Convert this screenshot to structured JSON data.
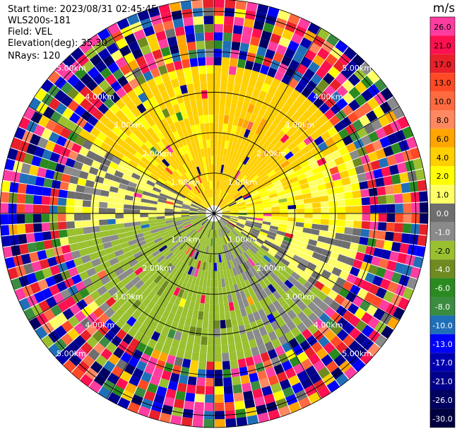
{
  "header": {
    "start_time": "Start time: 2023/08/31 02:45:45",
    "instrument": "WLS200s-181",
    "field": "Field: VEL",
    "elevation": "Elevation(deg): 35.30",
    "nrays": "NRays: 120"
  },
  "colorbar": {
    "unit": "m/s",
    "levels": [
      26.0,
      21.0,
      17.0,
      13.0,
      10.0,
      8.0,
      6.0,
      4.0,
      2.0,
      1.0,
      0.0,
      -1.0,
      -2.0,
      -4.0,
      -6.0,
      -8.0,
      -10.0,
      -13.0,
      -17.0,
      -21.0,
      -26.0,
      -30.0
    ],
    "labels": [
      "26.0",
      "21.0",
      "17.0",
      "13.0",
      "10.0",
      "8.0",
      "6.0",
      "4.0",
      "2.0",
      "1.0",
      "0.0",
      "-1.0",
      "-2.0",
      "-4.0",
      "-6.0",
      "-8.0",
      "-10.0",
      "-13.0",
      "-17.0",
      "-21.0",
      "-26.0",
      "-30.0"
    ],
    "colors": [
      "#ff3ca0",
      "#ff1050",
      "#e8202a",
      "#ff4a25",
      "#ff6a40",
      "#ff8860",
      "#ffa500",
      "#ffd000",
      "#ffff00",
      "#ffff66",
      "#6e6e6e",
      "#8a8a8a",
      "#9ac030",
      "#6e8a20",
      "#2a8a20",
      "#3a8c40",
      "#1e6fb8",
      "#0000ff",
      "#0000b0",
      "#00008a",
      "#000060",
      "#000040"
    ]
  },
  "chart_data": {
    "type": "heatmap",
    "title": "",
    "field": "VEL",
    "unit": "m/s",
    "rings_km": [
      1.0,
      2.0,
      3.0,
      4.0,
      5.0
    ],
    "ring_labels": [
      "1.00km",
      "2.00km",
      "3.00km",
      "4.00km",
      "5.00km"
    ],
    "spokes_deg": [
      0,
      30,
      60,
      90,
      120,
      150,
      180,
      210,
      240,
      270,
      300,
      330
    ],
    "nrays": 120,
    "vmin": -30.0,
    "vmax": 26.0,
    "valid_range_km": 3.5,
    "sectors": [
      {
        "az_from": 300,
        "az_to": 360,
        "v": 2.5
      },
      {
        "az_from": 0,
        "az_to": 60,
        "v": 3.0
      },
      {
        "az_from": 60,
        "az_to": 95,
        "v": 1.5
      },
      {
        "az_from": 95,
        "az_to": 125,
        "v": 0.0
      },
      {
        "az_from": 125,
        "az_to": 165,
        "v": -2.0
      },
      {
        "az_from": 165,
        "az_to": 225,
        "v": -3.0
      },
      {
        "az_from": 225,
        "az_to": 265,
        "v": -2.5
      },
      {
        "az_from": 265,
        "az_to": 300,
        "v": 0.0
      }
    ]
  }
}
